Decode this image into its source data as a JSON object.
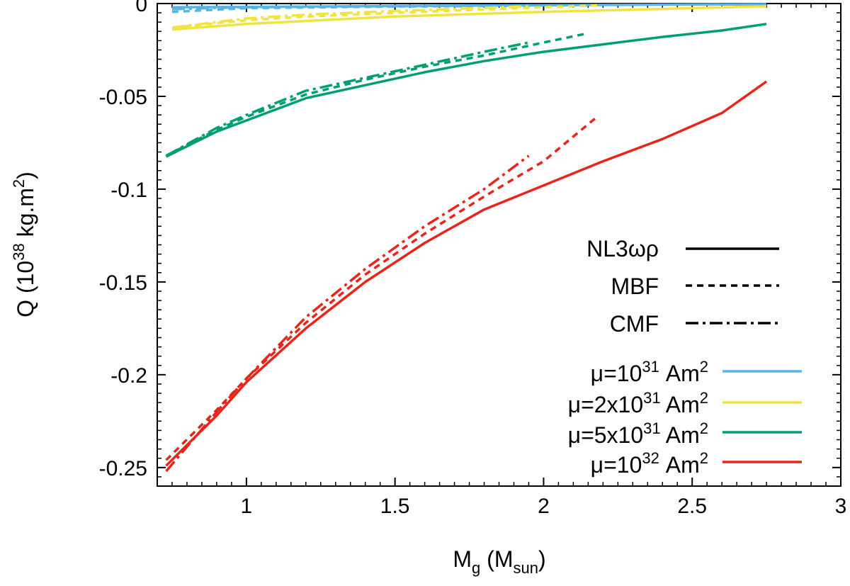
{
  "chart_data": {
    "type": "line",
    "title": "",
    "xlabel": {
      "base": "M",
      "sub": "g",
      "unit_base": "M",
      "unit_sub": "sun"
    },
    "ylabel": {
      "prefix": "Q (10",
      "exp": "38",
      "unit": " kg.m",
      "unit_exp": "2",
      "suffix": ")"
    },
    "xlim": [
      0.7,
      3.0
    ],
    "ylim": [
      -0.26,
      0.0
    ],
    "xticks": [
      1,
      1.5,
      2,
      2.5,
      3
    ],
    "xtick_labels": [
      "1",
      "1.5",
      "2",
      "2.5",
      "3"
    ],
    "yticks": [
      0,
      -0.05,
      -0.1,
      -0.15,
      -0.2,
      -0.25
    ],
    "ytick_labels": [
      "0",
      "-0.05",
      "-0.1",
      "-0.15",
      "-0.2",
      "-0.25"
    ],
    "legend_position": "center-right",
    "eos_legend": [
      {
        "name": "NL3ωρ",
        "style": "solid"
      },
      {
        "name": "MBF",
        "style": "dashed"
      },
      {
        "name": "CMF",
        "style": "dashdot"
      }
    ],
    "field_legend": [
      {
        "base": "μ=",
        "mantissa": "10",
        "exp": "31",
        "unit": " Am",
        "unit_exp": "2",
        "color": "#56b4e9"
      },
      {
        "base": "μ=",
        "mantissa": "2x10",
        "exp": "31",
        "unit": " Am",
        "unit_exp": "2",
        "color": "#f0e442"
      },
      {
        "base": "μ=",
        "mantissa": "5x10",
        "exp": "31",
        "unit": " Am",
        "unit_exp": "2",
        "color": "#009e73"
      },
      {
        "base": "μ=",
        "mantissa": "10",
        "exp": "32",
        "unit": " Am",
        "unit_exp": "2",
        "color": "#e8251b"
      }
    ],
    "series": [
      {
        "name": "NL3ωρ μ=10^31",
        "style": "solid",
        "color": "#56b4e9",
        "x": [
          0.75,
          1.0,
          1.5,
          2.0,
          2.5,
          2.75
        ],
        "y": [
          -0.002,
          -0.0018,
          -0.0013,
          -0.0009,
          -0.0005,
          -0.0004
        ]
      },
      {
        "name": "MBF μ=10^31",
        "style": "dashed",
        "color": "#56b4e9",
        "x": [
          0.75,
          1.0,
          1.5,
          2.0,
          2.18
        ],
        "y": [
          -0.0045,
          -0.0025,
          -0.0016,
          -0.0012,
          -0.001
        ]
      },
      {
        "name": "CMF μ=10^31",
        "style": "dashdot",
        "color": "#56b4e9",
        "x": [
          0.75,
          1.0,
          1.5,
          1.95
        ],
        "y": [
          -0.003,
          -0.002,
          -0.0014,
          -0.001
        ]
      },
      {
        "name": "NL3ωρ μ=2x10^31",
        "style": "solid",
        "color": "#f0e442",
        "x": [
          0.75,
          1.0,
          1.5,
          2.0,
          2.5,
          2.75
        ],
        "y": [
          -0.014,
          -0.011,
          -0.007,
          -0.0045,
          -0.0025,
          -0.0015
        ]
      },
      {
        "name": "MBF μ=2x10^31",
        "style": "dashed",
        "color": "#f0e442",
        "x": [
          0.75,
          1.0,
          1.2,
          1.5,
          2.0,
          2.18
        ],
        "y": [
          -0.013,
          -0.009,
          -0.007,
          -0.005,
          -0.002,
          -0.001
        ]
      },
      {
        "name": "CMF μ=2x10^31",
        "style": "dashdot",
        "color": "#f0e442",
        "x": [
          0.75,
          1.0,
          1.2,
          1.5,
          1.95
        ],
        "y": [
          -0.013,
          -0.008,
          -0.006,
          -0.004,
          -0.0015
        ]
      },
      {
        "name": "NL3ωρ μ=5x10^31",
        "style": "solid",
        "color": "#009e73",
        "x": [
          0.73,
          0.9,
          1.0,
          1.2,
          1.4,
          1.6,
          1.8,
          2.0,
          2.2,
          2.4,
          2.6,
          2.75
        ],
        "y": [
          -0.0825,
          -0.069,
          -0.063,
          -0.051,
          -0.044,
          -0.037,
          -0.031,
          -0.026,
          -0.022,
          -0.018,
          -0.0145,
          -0.011
        ]
      },
      {
        "name": "MBF μ=5x10^31",
        "style": "dashed",
        "color": "#009e73",
        "x": [
          0.73,
          0.9,
          1.0,
          1.2,
          1.4,
          1.6,
          1.8,
          2.0,
          2.15
        ],
        "y": [
          -0.082,
          -0.068,
          -0.061,
          -0.049,
          -0.041,
          -0.034,
          -0.028,
          -0.021,
          -0.016
        ]
      },
      {
        "name": "CMF μ=5x10^31",
        "style": "dashdot",
        "color": "#009e73",
        "x": [
          0.73,
          0.9,
          1.0,
          1.2,
          1.4,
          1.6,
          1.8,
          1.95
        ],
        "y": [
          -0.082,
          -0.067,
          -0.06,
          -0.047,
          -0.04,
          -0.033,
          -0.026,
          -0.021
        ]
      },
      {
        "name": "NL3ωρ μ=10^32",
        "style": "solid",
        "color": "#e8251b",
        "x": [
          0.73,
          0.9,
          1.0,
          1.2,
          1.4,
          1.6,
          1.8,
          2.0,
          2.2,
          2.4,
          2.6,
          2.75
        ],
        "y": [
          -0.249,
          -0.222,
          -0.204,
          -0.175,
          -0.15,
          -0.129,
          -0.111,
          -0.098,
          -0.085,
          -0.073,
          -0.059,
          -0.042
        ]
      },
      {
        "name": "MBF μ=10^32",
        "style": "dashed",
        "color": "#e8251b",
        "x": [
          0.73,
          0.9,
          1.0,
          1.2,
          1.4,
          1.6,
          1.8,
          2.0,
          2.18
        ],
        "y": [
          -0.246,
          -0.219,
          -0.202,
          -0.172,
          -0.146,
          -0.124,
          -0.104,
          -0.085,
          -0.061
        ]
      },
      {
        "name": "CMF μ=10^32",
        "style": "dashdot",
        "color": "#e8251b",
        "x": [
          0.73,
          0.9,
          1.0,
          1.2,
          1.4,
          1.6,
          1.8,
          1.95
        ],
        "y": [
          -0.252,
          -0.22,
          -0.202,
          -0.169,
          -0.143,
          -0.12,
          -0.1,
          -0.082
        ]
      }
    ]
  }
}
